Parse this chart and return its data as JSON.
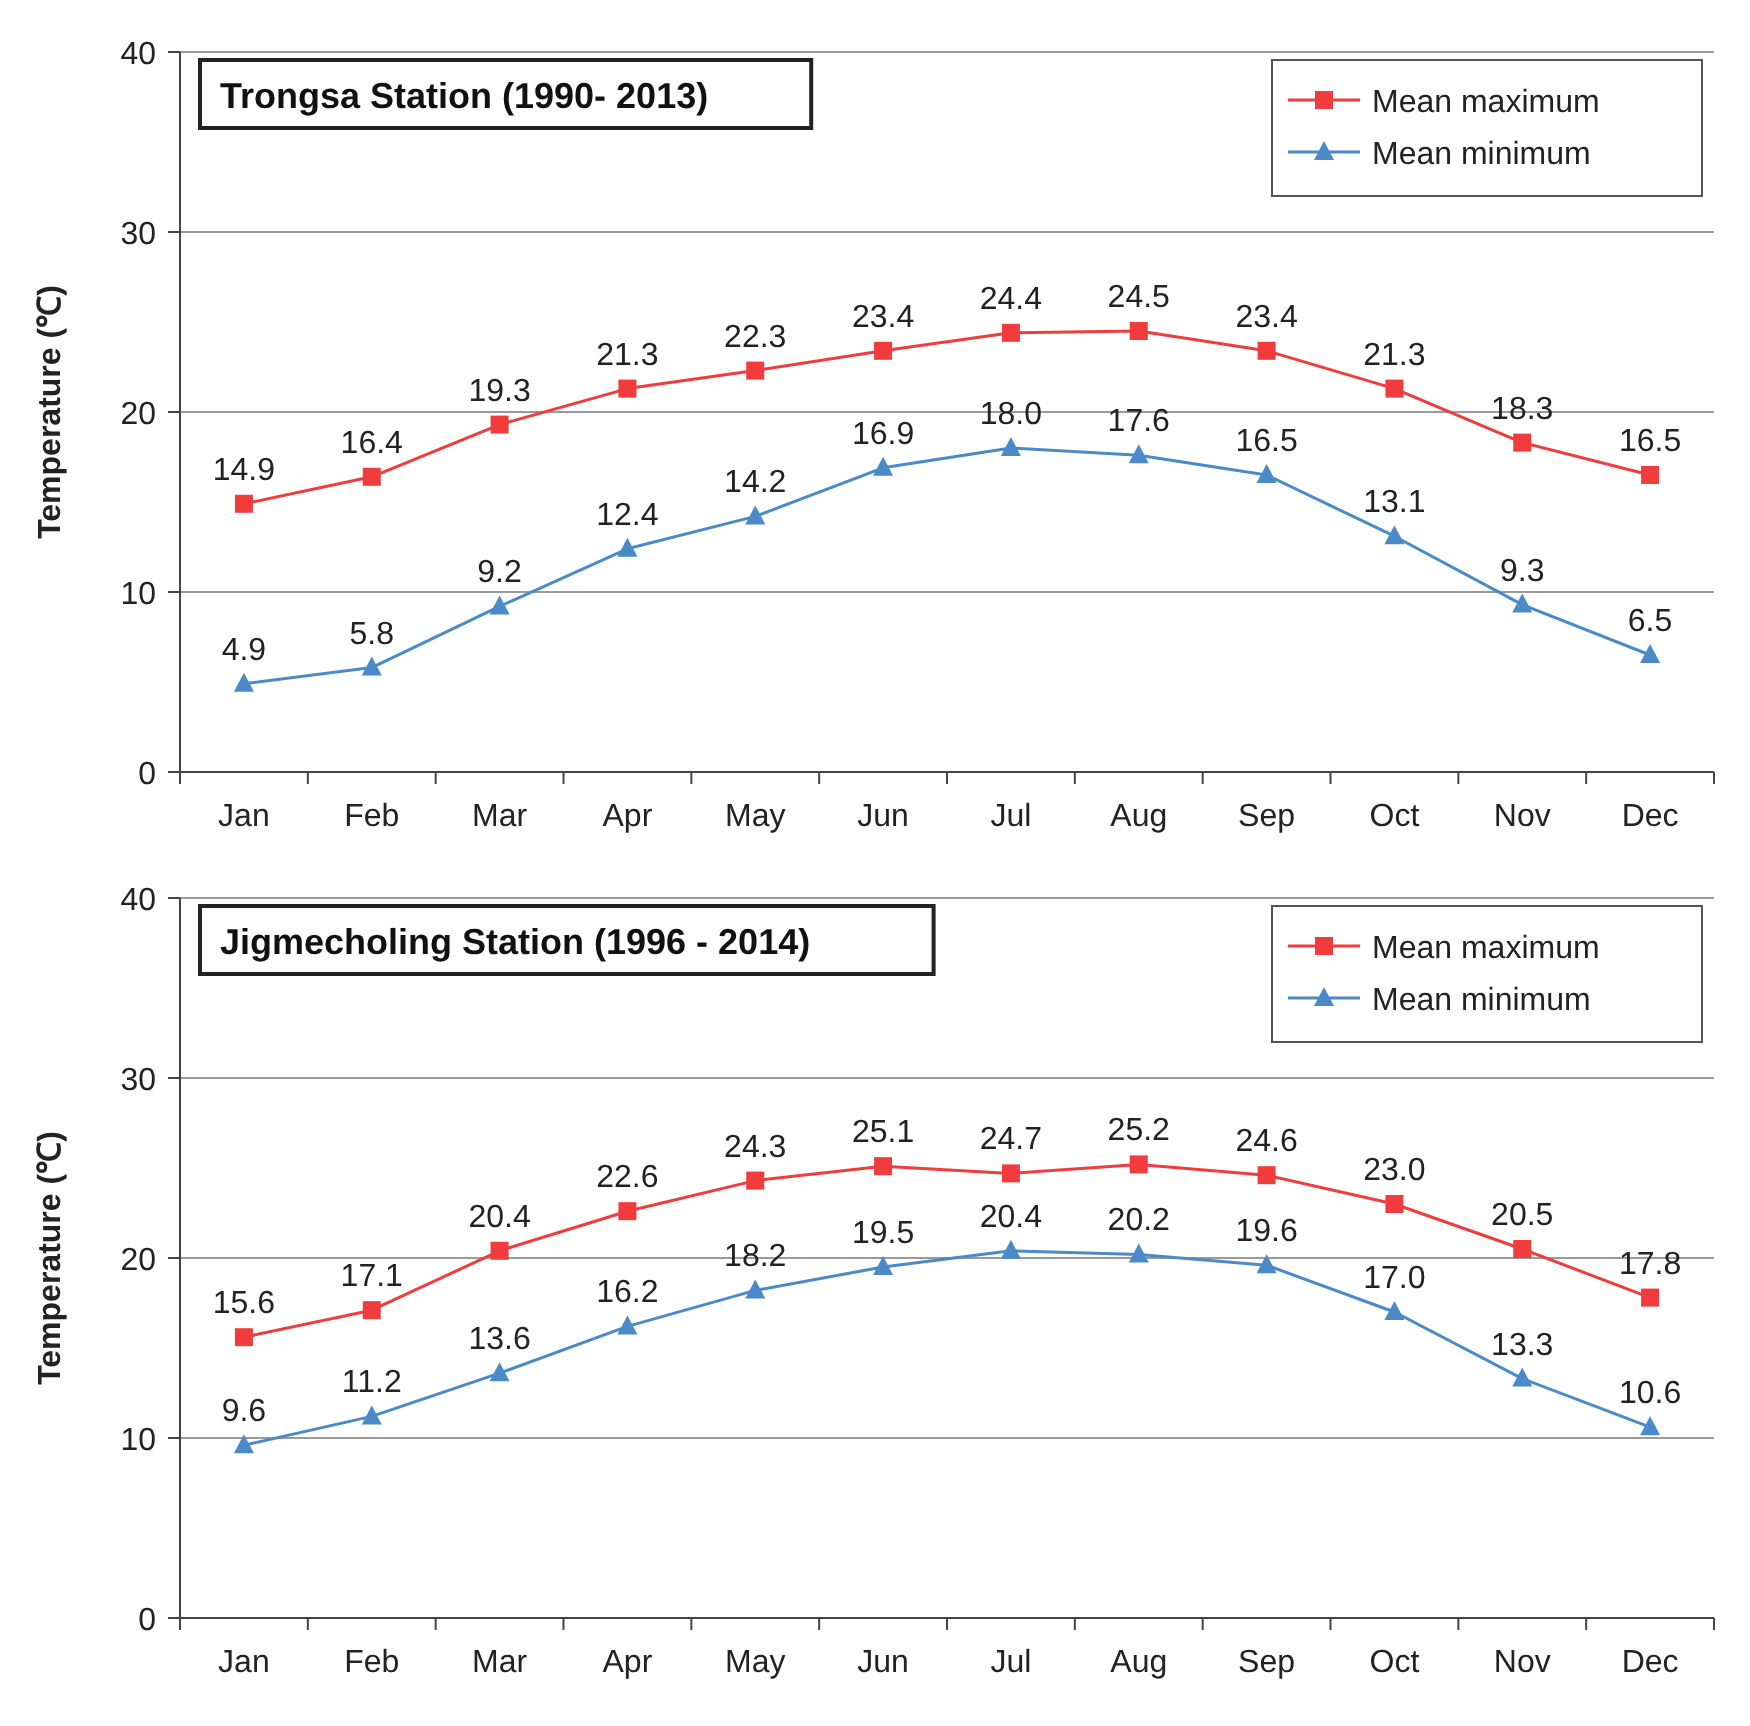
{
  "chart_data": [
    {
      "type": "line",
      "title": "Trongsa Station (1990- 2013)",
      "ylabel": "Temperature (℃)",
      "categories": [
        "Jan",
        "Feb",
        "Mar",
        "Apr",
        "May",
        "Jun",
        "Jul",
        "Aug",
        "Sep",
        "Oct",
        "Nov",
        "Dec"
      ],
      "ylim": [
        0,
        40
      ],
      "yticks": [
        0,
        10,
        20,
        30,
        40
      ],
      "grid": "y",
      "legend": "top right",
      "series": [
        {
          "name": "Mean maximum",
          "color": "#f03c3c",
          "marker": "square",
          "values": [
            14.9,
            16.4,
            19.3,
            21.3,
            22.3,
            23.4,
            24.4,
            24.5,
            23.4,
            21.3,
            18.3,
            16.5
          ],
          "value_labels": [
            "14.9",
            "16.4",
            "19.3",
            "21.3",
            "22.3",
            "23.4",
            "24.4",
            "24.5",
            "23.4",
            "21.3",
            "18.3",
            "16.5"
          ]
        },
        {
          "name": "Mean minimum",
          "color": "#4a8ac8",
          "marker": "triangle",
          "values": [
            4.9,
            5.8,
            9.2,
            12.4,
            14.2,
            16.9,
            18.0,
            17.6,
            16.5,
            13.1,
            9.3,
            6.5
          ],
          "value_labels": [
            "4.9",
            "5.8",
            "9.2",
            "12.4",
            "14.2",
            "16.9",
            "18.0",
            "17.6",
            "16.5",
            "13.1",
            "9.3",
            "6.5"
          ]
        }
      ]
    },
    {
      "type": "line",
      "title": "Jigmecholing Station (1996 - 2014)",
      "ylabel": "Temperature (℃)",
      "categories": [
        "Jan",
        "Feb",
        "Mar",
        "Apr",
        "May",
        "Jun",
        "Jul",
        "Aug",
        "Sep",
        "Oct",
        "Nov",
        "Dec"
      ],
      "ylim": [
        0,
        40
      ],
      "yticks": [
        0,
        10,
        20,
        30,
        40
      ],
      "grid": "y",
      "legend": "top right",
      "series": [
        {
          "name": "Mean maximum",
          "color": "#f03c3c",
          "marker": "square",
          "values": [
            15.6,
            17.1,
            20.4,
            22.6,
            24.3,
            25.1,
            24.7,
            25.2,
            24.6,
            23.0,
            20.5,
            17.8
          ],
          "value_labels": [
            "15.6",
            "17.1",
            "20.4",
            "22.6",
            "24.3",
            "25.1",
            "24.7",
            "25.2",
            "24.6",
            "23.0",
            "20.5",
            "17.8"
          ]
        },
        {
          "name": "Mean minimum",
          "color": "#4a8ac8",
          "marker": "triangle",
          "values": [
            9.6,
            11.2,
            13.6,
            16.2,
            18.2,
            19.5,
            20.4,
            20.2,
            19.6,
            17.0,
            13.3,
            10.6
          ],
          "value_labels": [
            "9.6",
            "11.2",
            "13.6",
            "16.2",
            "18.2",
            "19.5",
            "20.4",
            "20.2",
            "19.6",
            "17.0",
            "13.3",
            "10.6"
          ]
        }
      ]
    }
  ]
}
